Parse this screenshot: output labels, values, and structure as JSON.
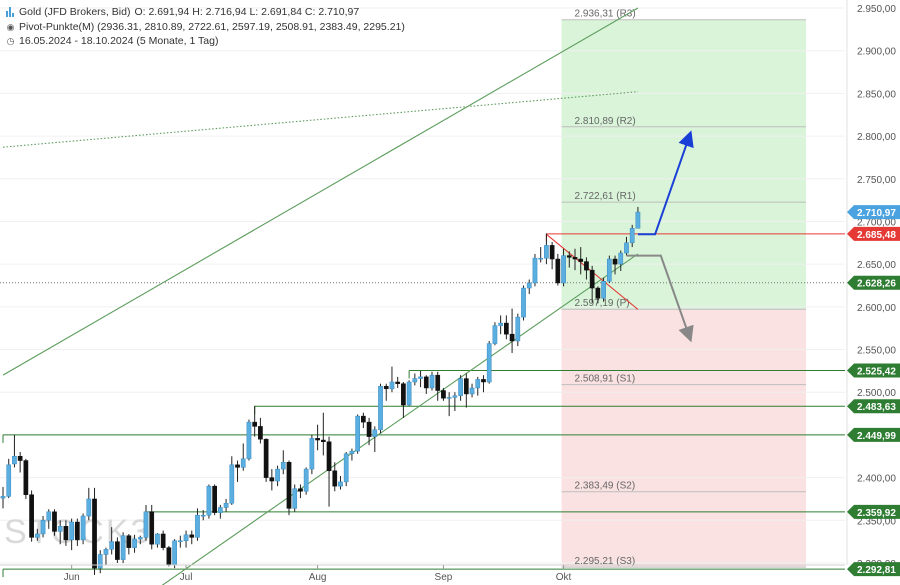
{
  "legend": {
    "instrument": "Gold (JFD Brokers, Bid)",
    "ohlc": "O: 2.691,94  H: 2.716,94  L: 2.691,84  C: 2.710,97",
    "pivot_label": "Pivot-Punkte(M)  (2936.31, 2810.89, 2722.61, 2597.19, 2508.91, 2383.49, 2295.21)",
    "range": "16.05.2024 - 18.10.2024  (5 Monate, 1 Tag)"
  },
  "watermark": "STOCK3",
  "colors": {
    "bull": "#5aaee0",
    "bear": "#111111",
    "support": "#2e7d32",
    "trend": "#5c9c5c",
    "resist": "#e53935",
    "blue_arrow": "#1a3fd6",
    "grey_arrow": "#888888",
    "zone_up": "#c9efc9",
    "zone_down": "#f9d2d2"
  },
  "chart_data": {
    "type": "candlestick",
    "title": "Gold (JFD Brokers, Bid)",
    "ylim": [
      2275,
      2955
    ],
    "y_ticks": [
      2300,
      2350,
      2400,
      2450,
      2500,
      2550,
      2600,
      2650,
      2700,
      2750,
      2800,
      2850,
      2900,
      2950
    ],
    "y_tick_labels": [
      "2.300,00",
      "2.350,00",
      "2.400,00",
      "2.450,00",
      "2.500,00",
      "2.550,00",
      "2.600,00",
      "2.650,00",
      "2.700,00",
      "2.750,00",
      "2.800,00",
      "2.850,00",
      "2.900,00",
      "2.950,00"
    ],
    "x_labels": [
      {
        "label": "Jun",
        "date": "2024-06-03"
      },
      {
        "label": "Jul",
        "date": "2024-07-01"
      },
      {
        "label": "Aug",
        "date": "2024-08-01"
      },
      {
        "label": "Sep",
        "date": "2024-09-02"
      },
      {
        "label": "Okt",
        "date": "2024-10-01"
      }
    ],
    "last_close": 2710.97,
    "price_tags": [
      {
        "value": 2710.97,
        "label": "2.710,97",
        "color": "#4aa3e0"
      },
      {
        "value": 2685.48,
        "label": "2.685,48",
        "color": "#e53935"
      },
      {
        "value": 2628.26,
        "label": "2.628,26",
        "color": "#2e7d32"
      },
      {
        "value": 2525.42,
        "label": "2.525,42",
        "color": "#2e7d32"
      },
      {
        "value": 2483.63,
        "label": "2.483,63",
        "color": "#2e7d32"
      },
      {
        "value": 2449.99,
        "label": "2.449,99",
        "color": "#2e7d32"
      },
      {
        "value": 2359.92,
        "label": "2.359,92",
        "color": "#2e7d32"
      },
      {
        "value": 2292.81,
        "label": "2.292,81",
        "color": "#2e7d32"
      }
    ],
    "pivots": [
      {
        "name": "R3",
        "value": 2936.31,
        "label": "2.936,31 (R3)"
      },
      {
        "name": "R2",
        "value": 2810.89,
        "label": "2.810,89 (R2)"
      },
      {
        "name": "R1",
        "value": 2722.61,
        "label": "2.722,61 (R1)"
      },
      {
        "name": "P",
        "value": 2597.19,
        "label": "2.597,19 (P)"
      },
      {
        "name": "S1",
        "value": 2508.91,
        "label": "2.508,91 (S1)"
      },
      {
        "name": "S2",
        "value": 2383.49,
        "label": "2.383,49 (S2)"
      },
      {
        "name": "S3",
        "value": 2295.21,
        "label": "2.295,21 (S3)"
      }
    ],
    "candles": [
      {
        "date": "2024-05-16",
        "o": 2376,
        "h": 2389,
        "l": 2364,
        "c": 2378
      },
      {
        "date": "2024-05-17",
        "o": 2378,
        "h": 2422,
        "l": 2376,
        "c": 2415
      },
      {
        "date": "2024-05-20",
        "o": 2416,
        "h": 2450,
        "l": 2412,
        "c": 2425
      },
      {
        "date": "2024-05-21",
        "o": 2425,
        "h": 2430,
        "l": 2406,
        "c": 2420
      },
      {
        "date": "2024-05-22",
        "o": 2420,
        "h": 2422,
        "l": 2375,
        "c": 2380
      },
      {
        "date": "2024-05-23",
        "o": 2380,
        "h": 2385,
        "l": 2325,
        "c": 2330
      },
      {
        "date": "2024-05-24",
        "o": 2330,
        "h": 2340,
        "l": 2326,
        "c": 2334
      },
      {
        "date": "2024-05-27",
        "o": 2334,
        "h": 2355,
        "l": 2330,
        "c": 2350
      },
      {
        "date": "2024-05-28",
        "o": 2350,
        "h": 2363,
        "l": 2340,
        "c": 2360
      },
      {
        "date": "2024-05-29",
        "o": 2360,
        "h": 2363,
        "l": 2332,
        "c": 2337
      },
      {
        "date": "2024-05-30",
        "o": 2337,
        "h": 2350,
        "l": 2322,
        "c": 2343
      },
      {
        "date": "2024-05-31",
        "o": 2343,
        "h": 2350,
        "l": 2320,
        "c": 2327
      },
      {
        "date": "2024-06-03",
        "o": 2327,
        "h": 2352,
        "l": 2315,
        "c": 2348
      },
      {
        "date": "2024-06-04",
        "o": 2348,
        "h": 2352,
        "l": 2320,
        "c": 2327
      },
      {
        "date": "2024-06-05",
        "o": 2327,
        "h": 2358,
        "l": 2322,
        "c": 2355
      },
      {
        "date": "2024-06-06",
        "o": 2355,
        "h": 2388,
        "l": 2350,
        "c": 2375
      },
      {
        "date": "2024-06-07",
        "o": 2375,
        "h": 2388,
        "l": 2286,
        "c": 2294
      },
      {
        "date": "2024-06-10",
        "o": 2294,
        "h": 2315,
        "l": 2288,
        "c": 2310
      },
      {
        "date": "2024-06-11",
        "o": 2310,
        "h": 2318,
        "l": 2298,
        "c": 2316
      },
      {
        "date": "2024-06-12",
        "o": 2316,
        "h": 2342,
        "l": 2310,
        "c": 2325
      },
      {
        "date": "2024-06-13",
        "o": 2325,
        "h": 2330,
        "l": 2300,
        "c": 2304
      },
      {
        "date": "2024-06-14",
        "o": 2304,
        "h": 2336,
        "l": 2300,
        "c": 2332
      },
      {
        "date": "2024-06-17",
        "o": 2332,
        "h": 2334,
        "l": 2310,
        "c": 2318
      },
      {
        "date": "2024-06-18",
        "o": 2318,
        "h": 2333,
        "l": 2312,
        "c": 2328
      },
      {
        "date": "2024-06-19",
        "o": 2328,
        "h": 2332,
        "l": 2322,
        "c": 2330
      },
      {
        "date": "2024-06-20",
        "o": 2330,
        "h": 2368,
        "l": 2326,
        "c": 2360
      },
      {
        "date": "2024-06-21",
        "o": 2360,
        "h": 2368,
        "l": 2316,
        "c": 2322
      },
      {
        "date": "2024-06-24",
        "o": 2322,
        "h": 2335,
        "l": 2318,
        "c": 2334
      },
      {
        "date": "2024-06-25",
        "o": 2334,
        "h": 2338,
        "l": 2315,
        "c": 2318
      },
      {
        "date": "2024-06-26",
        "o": 2318,
        "h": 2320,
        "l": 2296,
        "c": 2298
      },
      {
        "date": "2024-06-27",
        "o": 2298,
        "h": 2328,
        "l": 2294,
        "c": 2326
      },
      {
        "date": "2024-06-28",
        "o": 2326,
        "h": 2332,
        "l": 2318,
        "c": 2326
      },
      {
        "date": "2024-07-01",
        "o": 2326,
        "h": 2338,
        "l": 2318,
        "c": 2333
      },
      {
        "date": "2024-07-02",
        "o": 2333,
        "h": 2338,
        "l": 2322,
        "c": 2330
      },
      {
        "date": "2024-07-03",
        "o": 2330,
        "h": 2364,
        "l": 2326,
        "c": 2356
      },
      {
        "date": "2024-07-04",
        "o": 2356,
        "h": 2362,
        "l": 2350,
        "c": 2356
      },
      {
        "date": "2024-07-05",
        "o": 2356,
        "h": 2392,
        "l": 2352,
        "c": 2390
      },
      {
        "date": "2024-07-08",
        "o": 2390,
        "h": 2392,
        "l": 2356,
        "c": 2359
      },
      {
        "date": "2024-07-09",
        "o": 2359,
        "h": 2368,
        "l": 2352,
        "c": 2365
      },
      {
        "date": "2024-07-10",
        "o": 2365,
        "h": 2375,
        "l": 2360,
        "c": 2370
      },
      {
        "date": "2024-07-11",
        "o": 2370,
        "h": 2425,
        "l": 2368,
        "c": 2415
      },
      {
        "date": "2024-07-12",
        "o": 2415,
        "h": 2420,
        "l": 2395,
        "c": 2412
      },
      {
        "date": "2024-07-15",
        "o": 2412,
        "h": 2440,
        "l": 2408,
        "c": 2422
      },
      {
        "date": "2024-07-16",
        "o": 2422,
        "h": 2468,
        "l": 2420,
        "c": 2465
      },
      {
        "date": "2024-07-17",
        "o": 2465,
        "h": 2484,
        "l": 2448,
        "c": 2460
      },
      {
        "date": "2024-07-18",
        "o": 2460,
        "h": 2470,
        "l": 2440,
        "c": 2445
      },
      {
        "date": "2024-07-19",
        "o": 2445,
        "h": 2446,
        "l": 2395,
        "c": 2400
      },
      {
        "date": "2024-07-22",
        "o": 2400,
        "h": 2410,
        "l": 2385,
        "c": 2396
      },
      {
        "date": "2024-07-23",
        "o": 2396,
        "h": 2414,
        "l": 2390,
        "c": 2410
      },
      {
        "date": "2024-07-24",
        "o": 2410,
        "h": 2432,
        "l": 2404,
        "c": 2418
      },
      {
        "date": "2024-07-25",
        "o": 2418,
        "h": 2420,
        "l": 2356,
        "c": 2364
      },
      {
        "date": "2024-07-26",
        "o": 2364,
        "h": 2392,
        "l": 2360,
        "c": 2387
      },
      {
        "date": "2024-07-29",
        "o": 2387,
        "h": 2392,
        "l": 2376,
        "c": 2384
      },
      {
        "date": "2024-07-30",
        "o": 2384,
        "h": 2412,
        "l": 2380,
        "c": 2410
      },
      {
        "date": "2024-07-31",
        "o": 2410,
        "h": 2450,
        "l": 2404,
        "c": 2446
      },
      {
        "date": "2024-08-01",
        "o": 2446,
        "h": 2462,
        "l": 2432,
        "c": 2444
      },
      {
        "date": "2024-08-02",
        "o": 2444,
        "h": 2476,
        "l": 2426,
        "c": 2442
      },
      {
        "date": "2024-08-05",
        "o": 2442,
        "h": 2448,
        "l": 2366,
        "c": 2408
      },
      {
        "date": "2024-08-06",
        "o": 2408,
        "h": 2418,
        "l": 2384,
        "c": 2390
      },
      {
        "date": "2024-08-07",
        "o": 2390,
        "h": 2402,
        "l": 2386,
        "c": 2395
      },
      {
        "date": "2024-08-08",
        "o": 2395,
        "h": 2430,
        "l": 2390,
        "c": 2428
      },
      {
        "date": "2024-08-09",
        "o": 2428,
        "h": 2434,
        "l": 2420,
        "c": 2431
      },
      {
        "date": "2024-08-12",
        "o": 2431,
        "h": 2474,
        "l": 2428,
        "c": 2472
      },
      {
        "date": "2024-08-13",
        "o": 2472,
        "h": 2476,
        "l": 2458,
        "c": 2465
      },
      {
        "date": "2024-08-14",
        "o": 2465,
        "h": 2470,
        "l": 2438,
        "c": 2448
      },
      {
        "date": "2024-08-15",
        "o": 2448,
        "h": 2460,
        "l": 2430,
        "c": 2456
      },
      {
        "date": "2024-08-16",
        "o": 2456,
        "h": 2510,
        "l": 2452,
        "c": 2507
      },
      {
        "date": "2024-08-19",
        "o": 2507,
        "h": 2510,
        "l": 2490,
        "c": 2504
      },
      {
        "date": "2024-08-20",
        "o": 2504,
        "h": 2530,
        "l": 2500,
        "c": 2512
      },
      {
        "date": "2024-08-21",
        "o": 2512,
        "h": 2518,
        "l": 2505,
        "c": 2510
      },
      {
        "date": "2024-08-22",
        "o": 2510,
        "h": 2512,
        "l": 2470,
        "c": 2485
      },
      {
        "date": "2024-08-23",
        "o": 2485,
        "h": 2514,
        "l": 2484,
        "c": 2512
      },
      {
        "date": "2024-08-26",
        "o": 2512,
        "h": 2522,
        "l": 2508,
        "c": 2516
      },
      {
        "date": "2024-08-27",
        "o": 2516,
        "h": 2525,
        "l": 2506,
        "c": 2518
      },
      {
        "date": "2024-08-28",
        "o": 2518,
        "h": 2520,
        "l": 2498,
        "c": 2505
      },
      {
        "date": "2024-08-29",
        "o": 2505,
        "h": 2524,
        "l": 2502,
        "c": 2520
      },
      {
        "date": "2024-08-30",
        "o": 2520,
        "h": 2524,
        "l": 2490,
        "c": 2502
      },
      {
        "date": "2024-09-02",
        "o": 2502,
        "h": 2505,
        "l": 2490,
        "c": 2493
      },
      {
        "date": "2024-09-03",
        "o": 2493,
        "h": 2500,
        "l": 2472,
        "c": 2494
      },
      {
        "date": "2024-09-04",
        "o": 2494,
        "h": 2500,
        "l": 2478,
        "c": 2496
      },
      {
        "date": "2024-09-05",
        "o": 2496,
        "h": 2520,
        "l": 2490,
        "c": 2516
      },
      {
        "date": "2024-09-06",
        "o": 2516,
        "h": 2522,
        "l": 2482,
        "c": 2498
      },
      {
        "date": "2024-09-09",
        "o": 2498,
        "h": 2510,
        "l": 2494,
        "c": 2505
      },
      {
        "date": "2024-09-10",
        "o": 2505,
        "h": 2518,
        "l": 2496,
        "c": 2515
      },
      {
        "date": "2024-09-11",
        "o": 2515,
        "h": 2520,
        "l": 2500,
        "c": 2512
      },
      {
        "date": "2024-09-12",
        "o": 2512,
        "h": 2560,
        "l": 2510,
        "c": 2557
      },
      {
        "date": "2024-09-13",
        "o": 2557,
        "h": 2582,
        "l": 2555,
        "c": 2578
      },
      {
        "date": "2024-09-16",
        "o": 2578,
        "h": 2590,
        "l": 2568,
        "c": 2581
      },
      {
        "date": "2024-09-17",
        "o": 2581,
        "h": 2590,
        "l": 2562,
        "c": 2568
      },
      {
        "date": "2024-09-18",
        "o": 2568,
        "h": 2598,
        "l": 2546,
        "c": 2560
      },
      {
        "date": "2024-09-19",
        "o": 2560,
        "h": 2592,
        "l": 2554,
        "c": 2588
      },
      {
        "date": "2024-09-20",
        "o": 2588,
        "h": 2625,
        "l": 2584,
        "c": 2622
      },
      {
        "date": "2024-09-23",
        "o": 2622,
        "h": 2632,
        "l": 2615,
        "c": 2628
      },
      {
        "date": "2024-09-24",
        "o": 2628,
        "h": 2662,
        "l": 2624,
        "c": 2657
      },
      {
        "date": "2024-09-25",
        "o": 2657,
        "h": 2670,
        "l": 2652,
        "c": 2657
      },
      {
        "date": "2024-09-26",
        "o": 2657,
        "h": 2686,
        "l": 2650,
        "c": 2672
      },
      {
        "date": "2024-09-27",
        "o": 2672,
        "h": 2676,
        "l": 2644,
        "c": 2656
      },
      {
        "date": "2024-09-30",
        "o": 2656,
        "h": 2662,
        "l": 2625,
        "c": 2628
      },
      {
        "date": "2024-10-01",
        "o": 2628,
        "h": 2668,
        "l": 2624,
        "c": 2660
      },
      {
        "date": "2024-10-02",
        "o": 2660,
        "h": 2665,
        "l": 2646,
        "c": 2658
      },
      {
        "date": "2024-10-03",
        "o": 2658,
        "h": 2668,
        "l": 2643,
        "c": 2656
      },
      {
        "date": "2024-10-04",
        "o": 2656,
        "h": 2670,
        "l": 2638,
        "c": 2653
      },
      {
        "date": "2024-10-07",
        "o": 2653,
        "h": 2658,
        "l": 2632,
        "c": 2643
      },
      {
        "date": "2024-10-08",
        "o": 2643,
        "h": 2648,
        "l": 2605,
        "c": 2622
      },
      {
        "date": "2024-10-09",
        "o": 2622,
        "h": 2624,
        "l": 2604,
        "c": 2610
      },
      {
        "date": "2024-10-10",
        "o": 2610,
        "h": 2634,
        "l": 2606,
        "c": 2630
      },
      {
        "date": "2024-10-11",
        "o": 2630,
        "h": 2660,
        "l": 2628,
        "c": 2656
      },
      {
        "date": "2024-10-14",
        "o": 2656,
        "h": 2660,
        "l": 2638,
        "c": 2650
      },
      {
        "date": "2024-10-15",
        "o": 2650,
        "h": 2666,
        "l": 2642,
        "c": 2663
      },
      {
        "date": "2024-10-16",
        "o": 2663,
        "h": 2682,
        "l": 2660,
        "c": 2675
      },
      {
        "date": "2024-10-17",
        "o": 2675,
        "h": 2696,
        "l": 2670,
        "c": 2692
      },
      {
        "date": "2024-10-18",
        "o": 2692,
        "h": 2717,
        "l": 2692,
        "c": 2711
      }
    ],
    "horizontal_lines": [
      {
        "value": 2525.42,
        "from": "2024-08-23",
        "color": "#2e7d32"
      },
      {
        "value": 2483.63,
        "from": "2024-07-17",
        "color": "#2e7d32"
      },
      {
        "value": 2449.99,
        "from": "2024-05-16",
        "color": "#2e7d32"
      },
      {
        "value": 2359.92,
        "from": "2024-06-20",
        "color": "#2e7d32"
      },
      {
        "value": 2292.81,
        "from": "2024-05-16",
        "color": "#2e7d32"
      },
      {
        "value": 2685.48,
        "from": "2024-09-26",
        "color": "#e53935"
      },
      {
        "value": 2628.26,
        "from": "2024-05-16",
        "color": "#777777",
        "style": "dotted"
      }
    ],
    "trendlines": [
      {
        "from": {
          "date": "2024-05-16",
          "value": 2520
        },
        "to": {
          "date": "2024-10-18",
          "value": 2950
        },
        "color": "#5c9c5c"
      },
      {
        "from": {
          "date": "2024-06-24",
          "value": 2270
        },
        "to": {
          "date": "2024-10-18",
          "value": 2662
        },
        "color": "#5c9c5c"
      },
      {
        "from": {
          "date": "2024-09-26",
          "value": 2685
        },
        "to": {
          "date": "2024-10-18",
          "value": 2597
        },
        "color": "#e53935"
      },
      {
        "from": {
          "date": "2024-05-16",
          "value": 2787
        },
        "to": {
          "date": "2024-10-18",
          "value": 2852
        },
        "color": "#5c9c5c",
        "style": "dotted"
      }
    ],
    "forecast_arrows": [
      {
        "color": "#1a3fd6",
        "points": [
          {
            "date": "2024-10-18",
            "value": 2685
          },
          {
            "date": "2024-10-23",
            "value": 2685
          },
          {
            "date": "2024-10-31",
            "value": 2800
          }
        ]
      },
      {
        "color": "#888888",
        "points": [
          {
            "date": "2024-10-16",
            "value": 2660
          },
          {
            "date": "2024-10-24",
            "value": 2660
          },
          {
            "date": "2024-10-31",
            "value": 2565
          }
        ]
      }
    ]
  }
}
